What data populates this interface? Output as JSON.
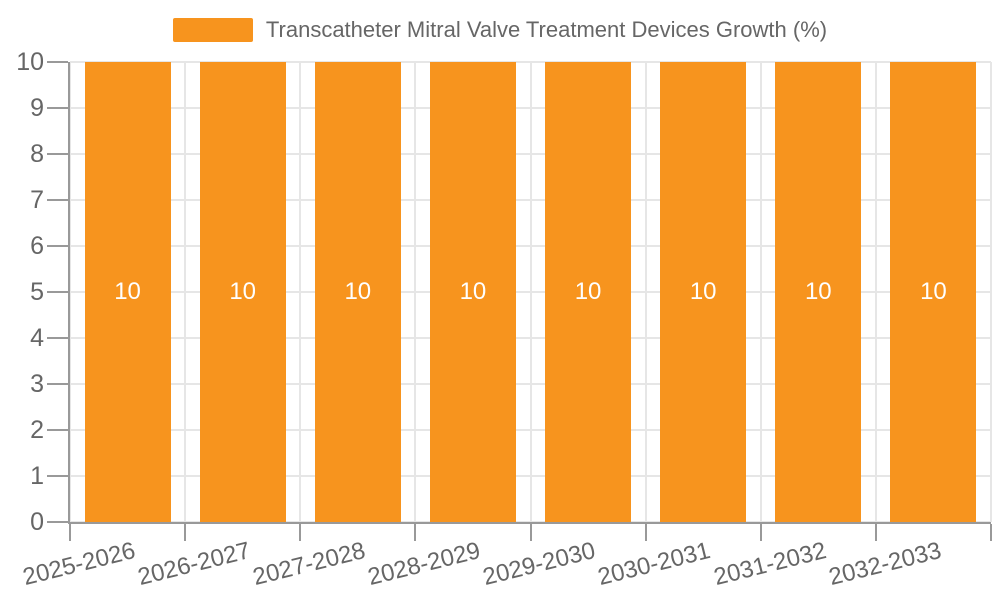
{
  "page": {
    "background": "#ffffff"
  },
  "legend": {
    "label": "Transcatheter Mitral Valve Treatment Devices Growth (%)",
    "swatch_color": "#f7941e",
    "position": "top-center"
  },
  "chart_data": {
    "type": "bar",
    "title": "Transcatheter Mitral Valve Treatment Devices Growth (%)",
    "categories": [
      "2025-2026",
      "2026-2027",
      "2027-2028",
      "2028-2029",
      "2029-2030",
      "2030-2031",
      "2031-2032",
      "2032-2033"
    ],
    "series": [
      {
        "name": "Transcatheter Mitral Valve Treatment Devices Growth (%)",
        "values": [
          10,
          10,
          10,
          10,
          10,
          10,
          10,
          10
        ]
      }
    ],
    "bar_labels": [
      "10",
      "10",
      "10",
      "10",
      "10",
      "10",
      "10",
      "10"
    ],
    "xlabel": "",
    "ylabel": "",
    "ylim": [
      0,
      10
    ],
    "yticks": [
      0,
      1,
      2,
      3,
      4,
      5,
      6,
      7,
      8,
      9,
      10
    ],
    "x_tick_labels_rotation_deg": -14,
    "grid": true,
    "legend_position": "top",
    "colors": {
      "bar": "#f7941e",
      "bar_label": "#ffffff",
      "axis": "#999999",
      "gridline": "#e6e6e6",
      "tick_label": "#666666",
      "legend_text": "#666666"
    }
  }
}
